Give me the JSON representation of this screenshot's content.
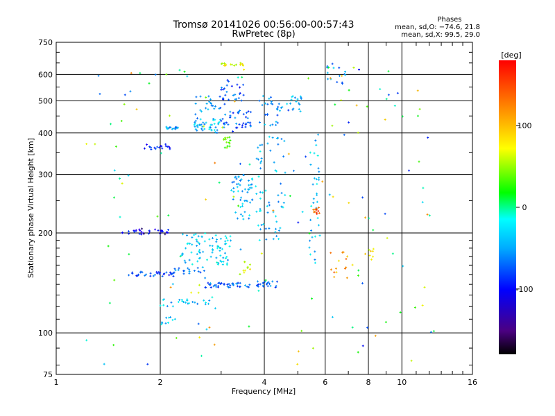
{
  "chart_data": {
    "type": "scatter",
    "title": "Tromsø 20141026 00:56:00-00:57:43",
    "subtitle": "RwPretec (8p)",
    "xlabel": "Frequency [MHz]",
    "ylabel": "Stationary phase Virtual Height [km]",
    "x_scale": "log",
    "y_scale": "log",
    "xlim": [
      1,
      16
    ],
    "ylim": [
      75,
      750
    ],
    "x_ticks": [
      1,
      2,
      4,
      6,
      8,
      10,
      16
    ],
    "y_ticks": [
      75,
      100,
      200,
      300,
      400,
      500,
      600,
      750
    ],
    "grid": true,
    "phase_info": {
      "title": "Phases",
      "line_o": "mean, sd,O: −74.6, 21.8",
      "line_x": "mean, sd,X:  99.5, 29.0"
    },
    "colorbar": {
      "label": "[deg]",
      "range": [
        -180,
        180
      ],
      "ticks": [
        100,
        0,
        -100
      ],
      "colormap": "rainbow"
    },
    "clusters": [
      {
        "f": [
          2.05,
          2.25
        ],
        "h": [
          410,
          418
        ],
        "phase": -90,
        "n": 18
      },
      {
        "f": [
          1.8,
          2.15
        ],
        "h": [
          355,
          370
        ],
        "phase": -130,
        "n": 18
      },
      {
        "f": [
          1.55,
          2.25
        ],
        "h": [
          198,
          206
        ],
        "phase": -145,
        "n": 32
      },
      {
        "f": [
          1.6,
          2.2
        ],
        "h": [
          148,
          153
        ],
        "phase": -120,
        "n": 34
      },
      {
        "f": [
          2.0,
          2.4
        ],
        "h": [
          120,
          128
        ],
        "phase": -80,
        "n": 14
      },
      {
        "f": [
          2.0,
          2.3
        ],
        "h": [
          106,
          112
        ],
        "phase": -70,
        "n": 10
      },
      {
        "f": [
          2.4,
          2.8
        ],
        "h": [
          122,
          126
        ],
        "phase": -80,
        "n": 10
      },
      {
        "f": [
          2.2,
          2.7
        ],
        "h": [
          150,
          158
        ],
        "phase": -100,
        "n": 16
      },
      {
        "f": [
          2.3,
          3.2
        ],
        "h": [
          160,
          200
        ],
        "phase": -75,
        "n": 80
      },
      {
        "f": [
          2.7,
          3.7
        ],
        "h": [
          137,
          142
        ],
        "phase": -105,
        "n": 40
      },
      {
        "f": [
          2.5,
          3.0
        ],
        "h": [
          400,
          440
        ],
        "phase": -80,
        "n": 40
      },
      {
        "f": [
          2.5,
          3.1
        ],
        "h": [
          440,
          520
        ],
        "phase": -95,
        "n": 25
      },
      {
        "f": [
          3.0,
          3.7
        ],
        "h": [
          400,
          470
        ],
        "phase": -110,
        "n": 40
      },
      {
        "f": [
          3.0,
          3.5
        ],
        "h": [
          500,
          580
        ],
        "phase": -115,
        "n": 25
      },
      {
        "f": [
          3.05,
          3.2
        ],
        "h": [
          360,
          390
        ],
        "phase": 50,
        "n": 14
      },
      {
        "f": [
          3.0,
          3.5
        ],
        "h": [
          638,
          650
        ],
        "phase": 95,
        "n": 16
      },
      {
        "f": [
          3.2,
          3.8
        ],
        "h": [
          220,
          300
        ],
        "phase": -85,
        "n": 55
      },
      {
        "f": [
          3.4,
          3.7
        ],
        "h": [
          150,
          165
        ],
        "phase": 85,
        "n": 10
      },
      {
        "f": [
          3.8,
          4.6
        ],
        "h": [
          190,
          400
        ],
        "phase": -80,
        "n": 60
      },
      {
        "f": [
          3.8,
          4.4
        ],
        "h": [
          420,
          520
        ],
        "phase": -95,
        "n": 25
      },
      {
        "f": [
          3.8,
          4.4
        ],
        "h": [
          137,
          143
        ],
        "phase": -105,
        "n": 22
      },
      {
        "f": [
          4.4,
          5.2
        ],
        "h": [
          460,
          520
        ],
        "phase": -90,
        "n": 20
      },
      {
        "f": [
          5.4,
          5.8
        ],
        "h": [
          160,
          400
        ],
        "phase": -75,
        "n": 35
      },
      {
        "f": [
          5.5,
          5.8
        ],
        "h": [
          228,
          240
        ],
        "phase": 160,
        "n": 10
      },
      {
        "f": [
          6.0,
          7.0
        ],
        "h": [
          560,
          650
        ],
        "phase": -95,
        "n": 14
      },
      {
        "f": [
          6.2,
          7.2
        ],
        "h": [
          145,
          175
        ],
        "phase": 130,
        "n": 14
      },
      {
        "f": [
          7.8,
          8.4
        ],
        "h": [
          165,
          180
        ],
        "phase": 95,
        "n": 8
      },
      {
        "f": [
          1.2,
          12.5
        ],
        "h": [
          80,
          650
        ],
        "phase": 0,
        "n": 160,
        "phase_spread": 140
      }
    ]
  }
}
